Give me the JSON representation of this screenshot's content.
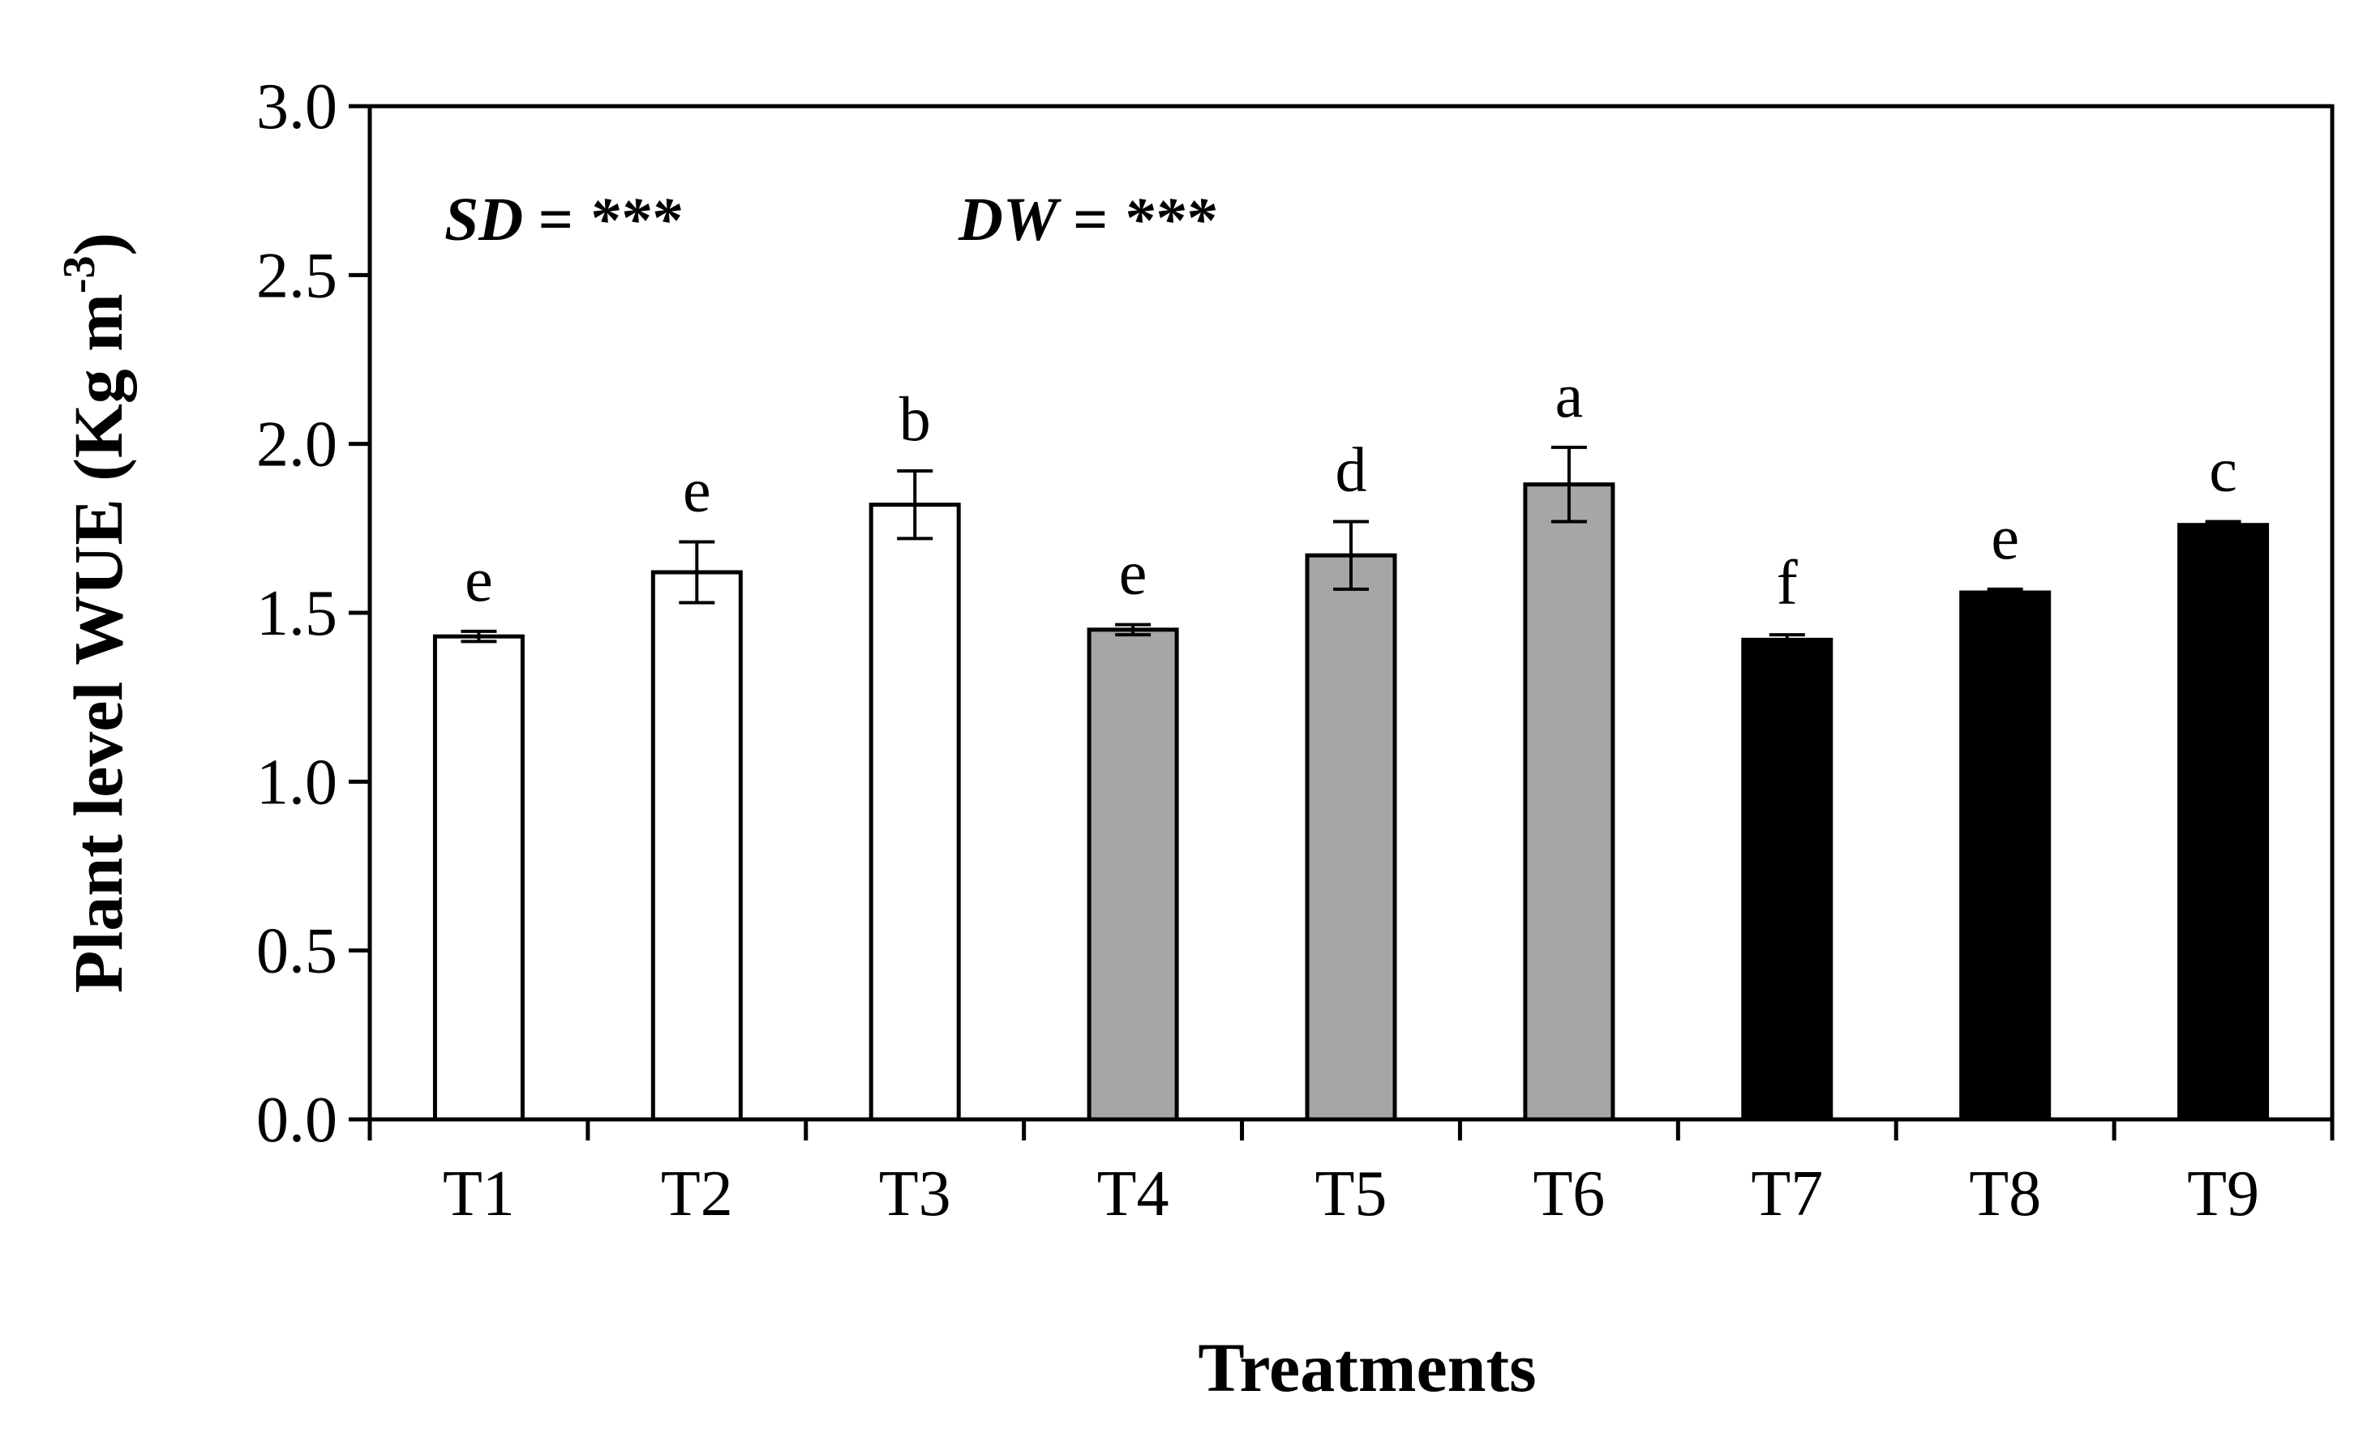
{
  "chart_data": {
    "type": "bar",
    "xlabel": "Treatments",
    "ylabel": "Plant level WUE (Kg m-3)",
    "ylabel_main": "Plant level WUE (Kg m",
    "ylabel_sup": "-3",
    "ylabel_close": ")",
    "ylim": [
      0,
      3
    ],
    "yticks": [
      "0.0",
      "0.5",
      "1.0",
      "1.5",
      "2.0",
      "2.5",
      "3.0"
    ],
    "categories": [
      "T1",
      "T2",
      "T3",
      "T4",
      "T5",
      "T6",
      "T7",
      "T8",
      "T9"
    ],
    "values": [
      1.43,
      1.62,
      1.82,
      1.45,
      1.67,
      1.88,
      1.42,
      1.56,
      1.76
    ],
    "errors": [
      0.015,
      0.09,
      0.1,
      0.015,
      0.1,
      0.11,
      0.015,
      0.01,
      0.01
    ],
    "letters": [
      "e",
      "e",
      "b",
      "e",
      "d",
      "a",
      "f",
      "e",
      "c"
    ],
    "fills": [
      "#ffffff",
      "#ffffff",
      "#ffffff",
      "#a6a6a6",
      "#a6a6a6",
      "#a6a6a6",
      "#000000",
      "#000000",
      "#000000"
    ],
    "annotations": [
      {
        "label": "SD",
        "value": "= ***"
      },
      {
        "label": "DW",
        "value": "= ***"
      }
    ],
    "grid": false
  }
}
